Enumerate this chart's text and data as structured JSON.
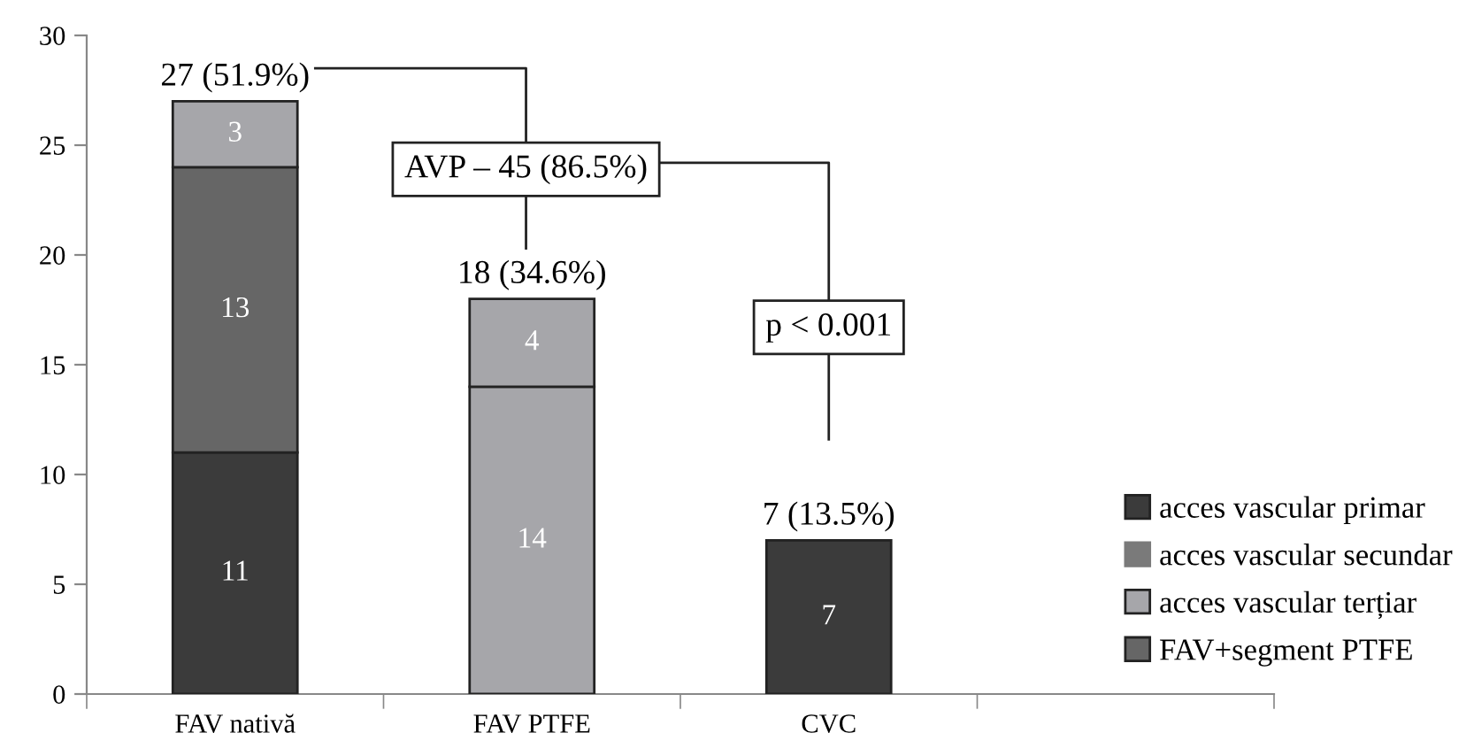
{
  "chart_data": {
    "type": "bar",
    "stacked": true,
    "categories": [
      "FAV nativă",
      "FAV PTFE",
      "CVC",
      null
    ],
    "series": [
      {
        "name": "acces vascular primar",
        "color": "#3b3b3b",
        "values": [
          11,
          null,
          7,
          null
        ]
      },
      {
        "name": "FAV+segment PTFE",
        "color": "#666666",
        "values": [
          13,
          null,
          null,
          null
        ]
      },
      {
        "name": "acces vascular terțiar",
        "color": "#a6a6aa",
        "values": [
          3,
          14,
          null,
          null
        ]
      },
      {
        "color": "#a6a6aa",
        "values": [
          null,
          4,
          null,
          null
        ]
      },
      {
        "name": "acces vascular secundar",
        "color": "#7a7a7a",
        "values": [
          null,
          null,
          null,
          null
        ]
      }
    ],
    "ylim": [
      0,
      30
    ],
    "yticks": [
      0,
      5,
      10,
      15,
      20,
      25,
      30
    ],
    "data_labels": true,
    "totals": [
      "27 (51.9%)",
      "18 (34.6%)",
      "7 (13.5%)",
      null
    ],
    "annotations": [
      "AVP – 45 (86.5%)",
      "p < 0.001"
    ],
    "grid": false,
    "legend": "bottom right"
  }
}
